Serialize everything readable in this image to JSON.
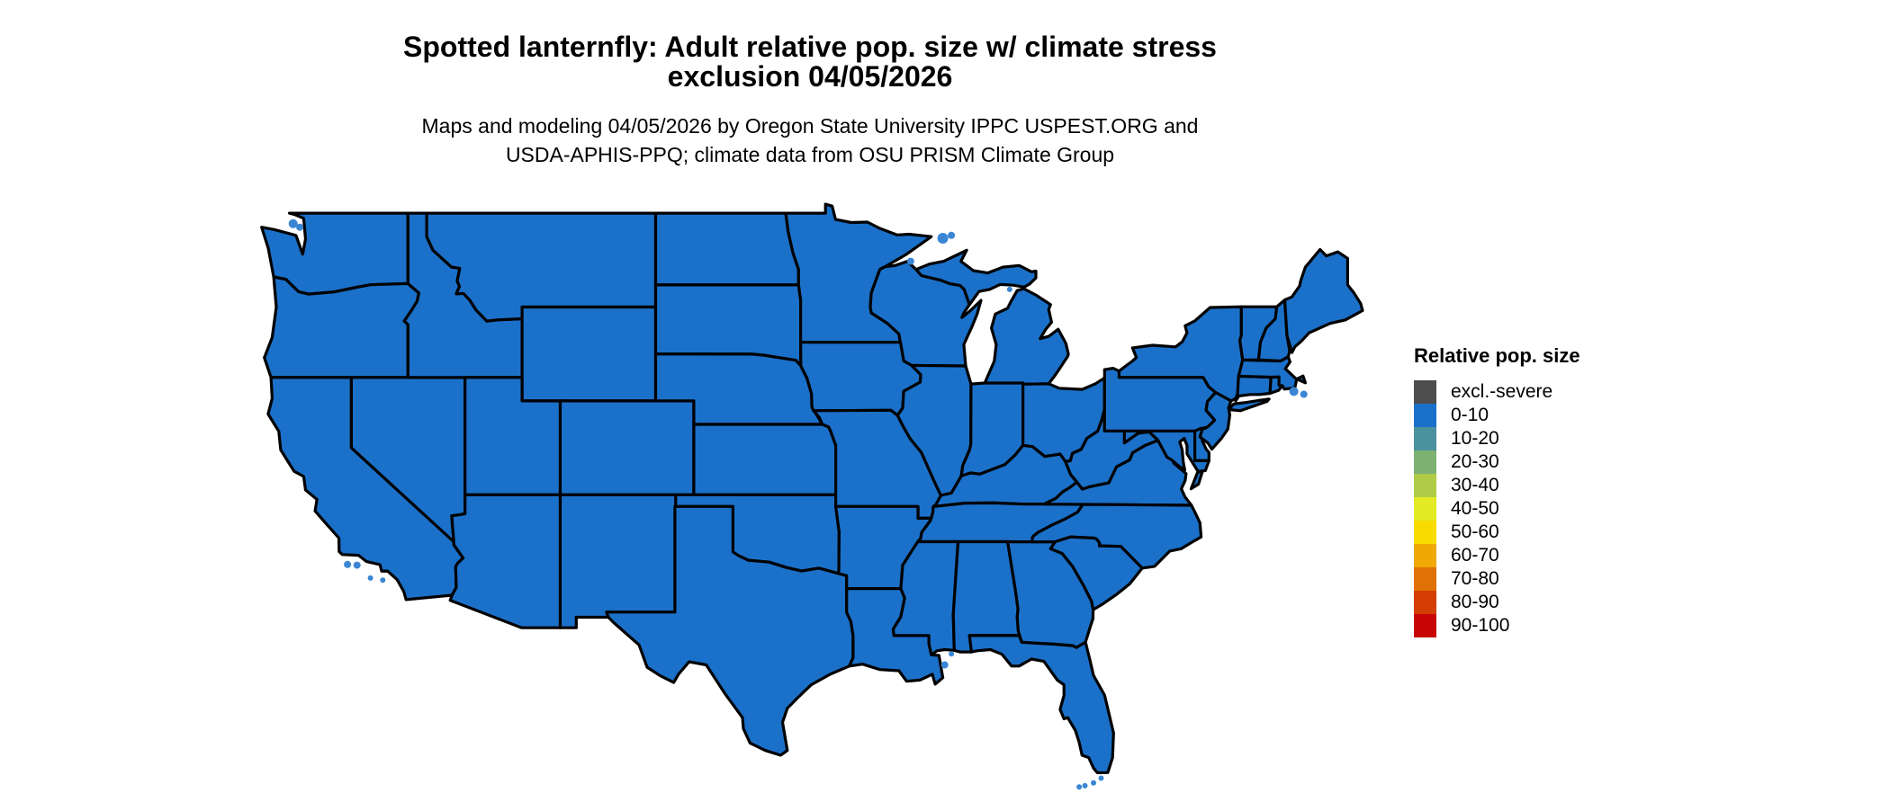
{
  "title": {
    "line1": "Spotted lanternfly: Adult relative pop. size w/ climate stress",
    "line2": "exclusion 04/05/2026"
  },
  "subtitle": {
    "line1": "Maps and modeling 04/05/2026 by Oregon State University IPPC USPEST.ORG and",
    "line2": "USDA-APHIS-PPQ; climate data from OSU PRISM Climate Group"
  },
  "legend": {
    "title": "Relative pop. size",
    "items": [
      {
        "label": "excl.-severe",
        "color": "#4D4D4D"
      },
      {
        "label": "0-10",
        "color": "#1B71C9"
      },
      {
        "label": "10-20",
        "color": "#4B919E"
      },
      {
        "label": "20-30",
        "color": "#7DB171"
      },
      {
        "label": "30-40",
        "color": "#AFCC46"
      },
      {
        "label": "40-50",
        "color": "#E4EA25"
      },
      {
        "label": "50-60",
        "color": "#F9DB00"
      },
      {
        "label": "60-70",
        "color": "#F0A804"
      },
      {
        "label": "70-80",
        "color": "#E17105"
      },
      {
        "label": "80-90",
        "color": "#D43D03"
      },
      {
        "label": "90-100",
        "color": "#C80505"
      }
    ]
  },
  "map": {
    "fill_category": "0-10",
    "fill_color": "#1B71C9",
    "border_color": "#000000",
    "coastal_island_color": "#3A86D4",
    "water_color": "#ffffff"
  },
  "chart_data": {
    "type": "choropleth_map",
    "region": "contiguous United States (lower 48 states)",
    "title": "Spotted lanternfly: Adult relative pop. size w/ climate stress exclusion 04/05/2026",
    "legend_title": "Relative pop. size",
    "categories": [
      "excl.-severe",
      "0-10",
      "10-20",
      "20-30",
      "30-40",
      "40-50",
      "50-60",
      "60-70",
      "70-80",
      "80-90",
      "90-100"
    ],
    "observed_values": "every state in the contiguous US is rendered in the 0-10 category (blue); no areas shown excluded or in higher categories",
    "legend_position": "right"
  }
}
